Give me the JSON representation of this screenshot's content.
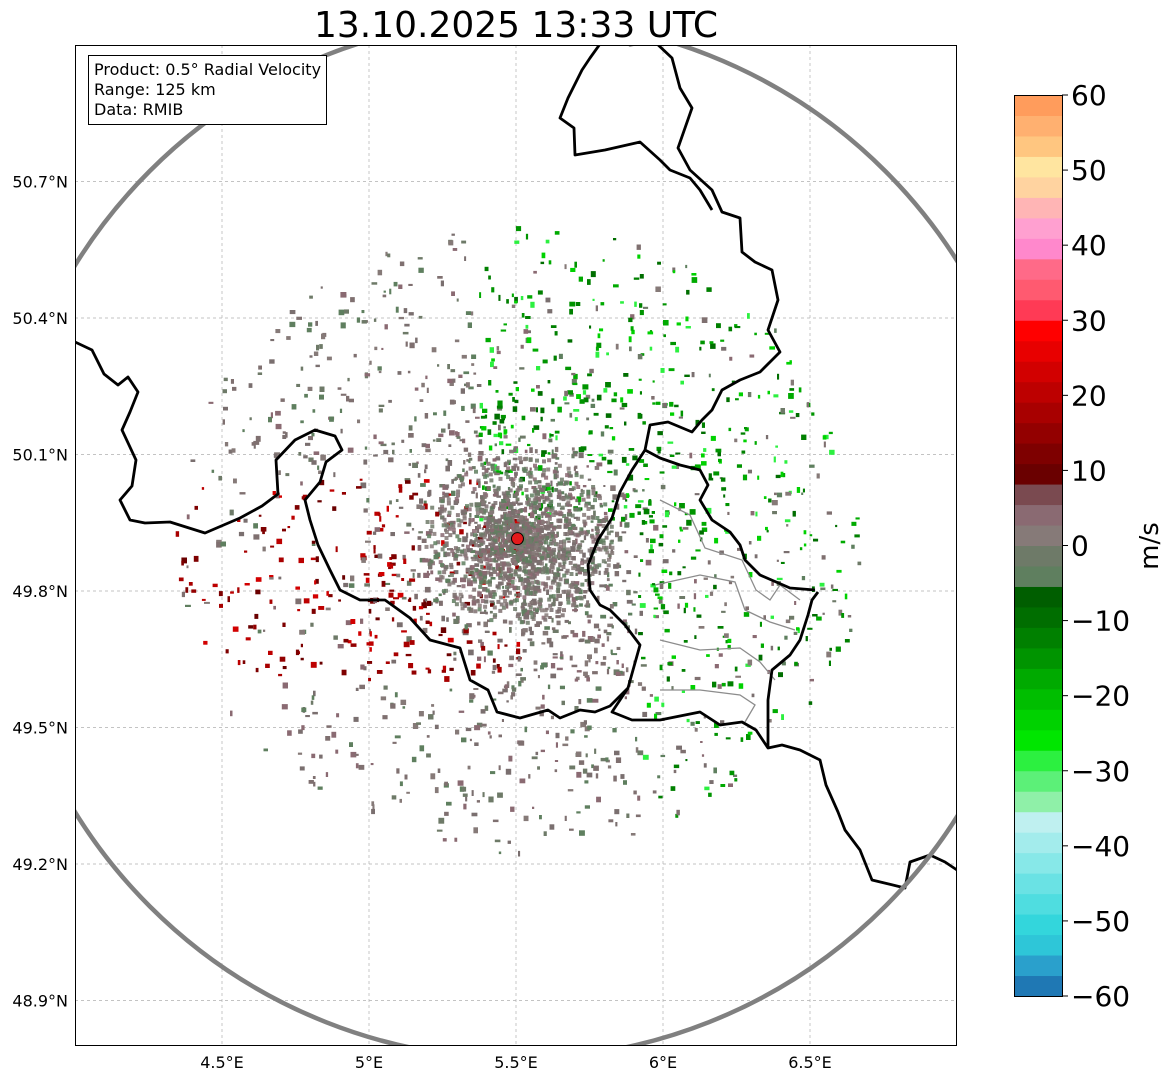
{
  "title": "13.10.2025 13:33 UTC",
  "info": {
    "product": "Product: 0.5° Radial Velocity",
    "range": "Range: 125 km",
    "source": "Data: RMIB"
  },
  "map": {
    "lon_range": [
      4.0,
      7.0
    ],
    "lat_range": [
      48.8,
      51.0
    ],
    "lon_ticks": [
      {
        "value": 4.5,
        "label": "4.5°E"
      },
      {
        "value": 5.0,
        "label": "5°E"
      },
      {
        "value": 5.5,
        "label": "5.5°E"
      },
      {
        "value": 6.0,
        "label": "6°E"
      },
      {
        "value": 6.5,
        "label": "6.5°E"
      }
    ],
    "lat_ticks": [
      {
        "value": 50.7,
        "label": "50.7°N"
      },
      {
        "value": 50.4,
        "label": "50.4°N"
      },
      {
        "value": 50.1,
        "label": "50.1°N"
      },
      {
        "value": 49.8,
        "label": "49.8°N"
      },
      {
        "value": 49.5,
        "label": "49.5°N"
      },
      {
        "value": 49.2,
        "label": "49.2°N"
      },
      {
        "value": 48.9,
        "label": "48.9°N"
      }
    ],
    "radar_site": {
      "lon": 5.505,
      "lat": 49.915,
      "color": "#e31a1c"
    },
    "range_ring_km": 125,
    "ring_color": "#808080",
    "border_color": "#000000"
  },
  "colorbar": {
    "label": "m/s",
    "min": -60,
    "max": 60,
    "ticks": [
      60,
      50,
      40,
      30,
      20,
      10,
      0,
      -10,
      -20,
      -30,
      -40,
      -50,
      -60
    ],
    "tick_labels": [
      "60",
      "50",
      "40",
      "30",
      "20",
      "10",
      "0",
      "−10",
      "−20",
      "−30",
      "−40",
      "−50",
      "−60"
    ],
    "colors": [
      "#1f78b4",
      "#2aa0cc",
      "#2ec6d8",
      "#33d6dc",
      "#4fdde0",
      "#6ae2e4",
      "#87e8e8",
      "#a3ecec",
      "#bff0f0",
      "#8ff0a8",
      "#5cf078",
      "#2cf040",
      "#00e600",
      "#00d200",
      "#00be00",
      "#00aa00",
      "#009400",
      "#008000",
      "#006e00",
      "#005e00",
      "#5f7f5f",
      "#6e7a68",
      "#867a78",
      "#8a6a72",
      "#7a4a50",
      "#6a0000",
      "#7e0000",
      "#930000",
      "#a80000",
      "#bd0000",
      "#d20000",
      "#e80000",
      "#ff0000",
      "#ff3a55",
      "#ff5a70",
      "#ff6a88",
      "#ff88cc",
      "#ffa0d0",
      "#ffb5b5",
      "#ffd3a0",
      "#ffe5a0",
      "#ffc680",
      "#ffb070",
      "#ff9c5c"
    ]
  },
  "chart_data": {
    "type": "heatmap",
    "title": "13.10.2025 13:33 UTC",
    "variable": "0.5° Radial Velocity",
    "units": "m/s",
    "value_range": [
      -60,
      60
    ],
    "center": {
      "lon": 5.505,
      "lat": 49.915
    }
  }
}
